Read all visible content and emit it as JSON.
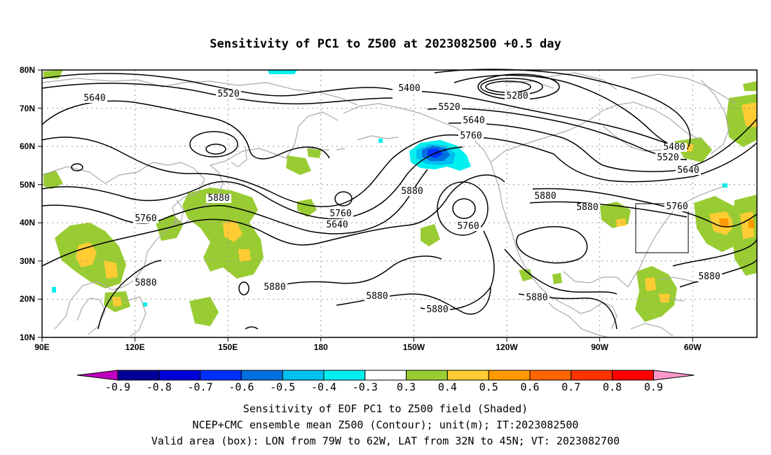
{
  "title": "Sensitivity of PC1 to Z500 at 2023082500 +0.5 day",
  "axes": {
    "lon_ticks": [
      "90E",
      "120E",
      "150E",
      "180",
      "150W",
      "120W",
      "90W",
      "60W"
    ],
    "lat_ticks": [
      "80N",
      "70N",
      "60N",
      "50N",
      "40N",
      "30N",
      "20N",
      "10N"
    ]
  },
  "contour_labels": [
    "5640",
    "5520",
    "5400",
    "5280",
    "5520",
    "5640",
    "5760",
    "5400",
    "5520",
    "5640",
    "5760",
    "5880",
    "5760",
    "5640",
    "5760",
    "5880",
    "5880",
    "5760",
    "5880",
    "5880",
    "5880",
    "5880",
    "5880",
    "5880",
    "5880"
  ],
  "colorbar": {
    "labels": [
      "-0.9",
      "-0.8",
      "-0.7",
      "-0.6",
      "-0.5",
      "-0.4",
      "-0.3",
      "0.3",
      "0.4",
      "0.5",
      "0.6",
      "0.7",
      "0.8",
      "0.9"
    ],
    "colors": [
      "#c000c0",
      "#00009a",
      "#0000d9",
      "#0030ff",
      "#0070e0",
      "#00c0f0",
      "#00f0f0",
      "#ffffff",
      "#99cc33",
      "#ffcc33",
      "#ff9900",
      "#ff6600",
      "#ff3300",
      "#ff0000",
      "#ff99cc"
    ]
  },
  "captions": [
    "Sensitivity of EOF PC1 to Z500 field (Shaded)",
    "NCEP+CMC ensemble mean Z500 (Contour); unit(m); IT:2023082500",
    "Valid area (box): LON from 79W to 62W, LAT from 32N to 45N; VT: 2023082700"
  ],
  "map_colors": {
    "coast": "#aaaaaa",
    "grid": "#999999",
    "positive_green": "#99cc33",
    "positive_yellow": "#ffcc33",
    "positive_orange": "#ff9900",
    "negative_cyan": "#00f0f0",
    "negative_sky": "#00c0f0",
    "negative_blue": "#0070e0",
    "negative_dark": "#0030ff"
  }
}
